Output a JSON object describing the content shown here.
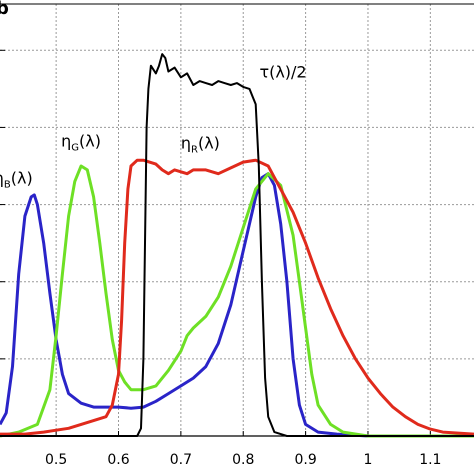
{
  "chart_data": {
    "type": "line",
    "panel_letter": "b",
    "xlim": [
      0.41,
      1.17
    ],
    "ylim": [
      0,
      1.12
    ],
    "x_ticks": [
      "0.5",
      "0.6",
      "0.7",
      "0.8",
      "0.9",
      "1",
      "1.1"
    ],
    "x_tick_values": [
      0.5,
      0.6,
      0.7,
      0.8,
      0.9,
      1.0,
      1.1
    ],
    "y_gridlines": [
      0.2,
      0.4,
      0.6,
      0.8,
      1.0
    ],
    "grid": true,
    "series": [
      {
        "name": "ηB(λ)",
        "color": "#2a24c8",
        "label_main": "η",
        "label_sub": "B",
        "label_tail": "(λ)",
        "label_at": [
          0.4,
          0.655
        ],
        "points": [
          [
            0.41,
            0.03
          ],
          [
            0.42,
            0.06
          ],
          [
            0.43,
            0.18
          ],
          [
            0.44,
            0.42
          ],
          [
            0.45,
            0.57
          ],
          [
            0.46,
            0.62
          ],
          [
            0.465,
            0.625
          ],
          [
            0.47,
            0.6
          ],
          [
            0.48,
            0.5
          ],
          [
            0.49,
            0.37
          ],
          [
            0.5,
            0.25
          ],
          [
            0.51,
            0.16
          ],
          [
            0.52,
            0.11
          ],
          [
            0.54,
            0.085
          ],
          [
            0.56,
            0.075
          ],
          [
            0.58,
            0.075
          ],
          [
            0.6,
            0.075
          ],
          [
            0.62,
            0.072
          ],
          [
            0.64,
            0.075
          ],
          [
            0.66,
            0.09
          ],
          [
            0.68,
            0.11
          ],
          [
            0.7,
            0.13
          ],
          [
            0.72,
            0.15
          ],
          [
            0.74,
            0.18
          ],
          [
            0.76,
            0.24
          ],
          [
            0.78,
            0.34
          ],
          [
            0.8,
            0.48
          ],
          [
            0.82,
            0.62
          ],
          [
            0.83,
            0.67
          ],
          [
            0.84,
            0.68
          ],
          [
            0.85,
            0.65
          ],
          [
            0.86,
            0.55
          ],
          [
            0.87,
            0.4
          ],
          [
            0.88,
            0.2
          ],
          [
            0.89,
            0.08
          ],
          [
            0.9,
            0.03
          ],
          [
            0.92,
            0.01
          ],
          [
            0.95,
            0.005
          ],
          [
            1.0,
            0.0
          ],
          [
            1.17,
            0.0
          ]
        ]
      },
      {
        "name": "ηG(λ)",
        "color": "#6ee025",
        "label_main": "η",
        "label_sub": "G",
        "label_tail": "(λ)",
        "label_at": [
          0.508,
          0.75
        ],
        "points": [
          [
            0.41,
            0.0
          ],
          [
            0.44,
            0.01
          ],
          [
            0.47,
            0.03
          ],
          [
            0.49,
            0.12
          ],
          [
            0.5,
            0.26
          ],
          [
            0.51,
            0.42
          ],
          [
            0.52,
            0.57
          ],
          [
            0.53,
            0.66
          ],
          [
            0.54,
            0.7
          ],
          [
            0.55,
            0.69
          ],
          [
            0.56,
            0.62
          ],
          [
            0.57,
            0.5
          ],
          [
            0.58,
            0.37
          ],
          [
            0.59,
            0.25
          ],
          [
            0.6,
            0.17
          ],
          [
            0.61,
            0.14
          ],
          [
            0.62,
            0.12
          ],
          [
            0.64,
            0.12
          ],
          [
            0.66,
            0.13
          ],
          [
            0.68,
            0.17
          ],
          [
            0.7,
            0.22
          ],
          [
            0.71,
            0.26
          ],
          [
            0.72,
            0.28
          ],
          [
            0.74,
            0.31
          ],
          [
            0.76,
            0.36
          ],
          [
            0.78,
            0.44
          ],
          [
            0.8,
            0.54
          ],
          [
            0.82,
            0.64
          ],
          [
            0.84,
            0.68
          ],
          [
            0.86,
            0.65
          ],
          [
            0.88,
            0.52
          ],
          [
            0.89,
            0.4
          ],
          [
            0.9,
            0.28
          ],
          [
            0.91,
            0.16
          ],
          [
            0.92,
            0.08
          ],
          [
            0.94,
            0.03
          ],
          [
            0.96,
            0.01
          ],
          [
            1.0,
            0.0
          ],
          [
            1.17,
            0.0
          ]
        ]
      },
      {
        "name": "ηR(λ)",
        "color": "#e02a1c",
        "label_main": "η",
        "label_sub": "R",
        "label_tail": "(λ)",
        "label_at": [
          0.7,
          0.745
        ],
        "points": [
          [
            0.41,
            0.005
          ],
          [
            0.45,
            0.005
          ],
          [
            0.48,
            0.01
          ],
          [
            0.5,
            0.015
          ],
          [
            0.52,
            0.02
          ],
          [
            0.54,
            0.03
          ],
          [
            0.56,
            0.04
          ],
          [
            0.58,
            0.05
          ],
          [
            0.59,
            0.08
          ],
          [
            0.6,
            0.16
          ],
          [
            0.605,
            0.3
          ],
          [
            0.61,
            0.5
          ],
          [
            0.615,
            0.64
          ],
          [
            0.62,
            0.7
          ],
          [
            0.63,
            0.715
          ],
          [
            0.64,
            0.715
          ],
          [
            0.66,
            0.705
          ],
          [
            0.67,
            0.69
          ],
          [
            0.68,
            0.68
          ],
          [
            0.69,
            0.69
          ],
          [
            0.7,
            0.685
          ],
          [
            0.71,
            0.68
          ],
          [
            0.72,
            0.69
          ],
          [
            0.74,
            0.69
          ],
          [
            0.76,
            0.68
          ],
          [
            0.78,
            0.695
          ],
          [
            0.8,
            0.71
          ],
          [
            0.82,
            0.715
          ],
          [
            0.84,
            0.7
          ],
          [
            0.85,
            0.67
          ],
          [
            0.86,
            0.64
          ],
          [
            0.88,
            0.58
          ],
          [
            0.9,
            0.5
          ],
          [
            0.92,
            0.41
          ],
          [
            0.94,
            0.33
          ],
          [
            0.96,
            0.26
          ],
          [
            0.98,
            0.2
          ],
          [
            1.0,
            0.15
          ],
          [
            1.02,
            0.11
          ],
          [
            1.04,
            0.075
          ],
          [
            1.06,
            0.05
          ],
          [
            1.08,
            0.03
          ],
          [
            1.1,
            0.018
          ],
          [
            1.12,
            0.01
          ],
          [
            1.17,
            0.005
          ]
        ]
      },
      {
        "name": "τ(λ)/2",
        "color": "#000000",
        "label_main": "τ(λ)/2",
        "label_at": [
          0.826,
          0.93
        ],
        "points": [
          [
            0.41,
            0.0
          ],
          [
            0.6,
            0.0
          ],
          [
            0.63,
            0.0
          ],
          [
            0.636,
            0.02
          ],
          [
            0.64,
            0.2
          ],
          [
            0.645,
            0.8
          ],
          [
            0.648,
            0.9
          ],
          [
            0.652,
            0.96
          ],
          [
            0.66,
            0.94
          ],
          [
            0.665,
            0.96
          ],
          [
            0.67,
            0.99
          ],
          [
            0.675,
            0.98
          ],
          [
            0.68,
            0.945
          ],
          [
            0.69,
            0.955
          ],
          [
            0.7,
            0.93
          ],
          [
            0.71,
            0.94
          ],
          [
            0.72,
            0.91
          ],
          [
            0.73,
            0.92
          ],
          [
            0.74,
            0.915
          ],
          [
            0.75,
            0.91
          ],
          [
            0.76,
            0.92
          ],
          [
            0.77,
            0.915
          ],
          [
            0.78,
            0.91
          ],
          [
            0.79,
            0.915
          ],
          [
            0.8,
            0.905
          ],
          [
            0.81,
            0.9
          ],
          [
            0.815,
            0.88
          ],
          [
            0.82,
            0.86
          ],
          [
            0.825,
            0.7
          ],
          [
            0.83,
            0.4
          ],
          [
            0.835,
            0.15
          ],
          [
            0.84,
            0.05
          ],
          [
            0.85,
            0.01
          ],
          [
            0.87,
            0.0
          ],
          [
            1.17,
            0.0
          ]
        ]
      }
    ]
  }
}
